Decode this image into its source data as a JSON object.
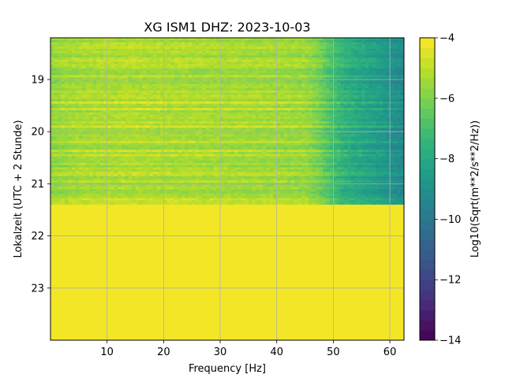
{
  "chart_data": {
    "type": "heatmap",
    "title": "XG ISM1  DHZ: 2023-10-03",
    "xlabel": "Frequency [Hz]",
    "ylabel": "Lokalzeit (UTC + 2 Stunde)",
    "xlim": [
      0,
      62.5
    ],
    "ylim": [
      24.0,
      18.2
    ],
    "y_inverted": true,
    "grid": true,
    "x_ticks": [
      10,
      20,
      30,
      40,
      50,
      60
    ],
    "y_ticks": [
      19,
      20,
      21,
      22,
      23
    ],
    "data_rows_end_hour": 21.4,
    "no_data_region": {
      "from_hour": 21.4,
      "to_hour": 24.0,
      "value": -4
    },
    "band_profile": {
      "frequency_hz": [
        0,
        5,
        10,
        15,
        20,
        25,
        30,
        35,
        40,
        45,
        47,
        50,
        52,
        55,
        58,
        60,
        62.5
      ],
      "log10_amplitude": [
        -5.6,
        -5.3,
        -5.2,
        -5.15,
        -5.2,
        -5.25,
        -5.3,
        -5.35,
        -5.4,
        -5.5,
        -5.9,
        -7.0,
        -7.6,
        -8.0,
        -8.4,
        -8.8,
        -9.2
      ]
    },
    "colorbar": {
      "label": "Log10(Sqrt(m**2/s**2/Hz))",
      "min": -14,
      "max": -4,
      "ticks": [
        -14,
        -12,
        -10,
        -8,
        -6,
        -4
      ],
      "colormap": "viridis",
      "levels": 30
    }
  }
}
